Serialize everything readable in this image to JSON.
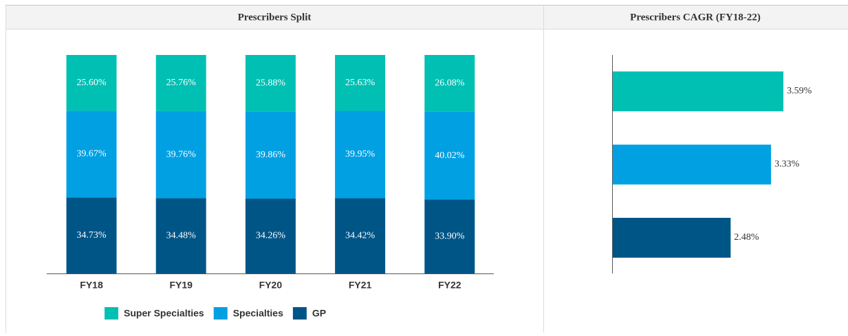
{
  "chart_data": [
    {
      "type": "bar",
      "stacked": true,
      "title": "Prescribers Split",
      "categories": [
        "FY18",
        "FY19",
        "FY20",
        "FY21",
        "FY22"
      ],
      "series": [
        {
          "name": "GP",
          "color": "#005587",
          "values": [
            34.73,
            34.48,
            34.26,
            34.42,
            33.9
          ],
          "value_labels": [
            "34.73%",
            "34.48%",
            "34.26%",
            "34.42%",
            "33.90%"
          ]
        },
        {
          "name": "Specialties",
          "color": "#00a0e3",
          "values": [
            39.67,
            39.76,
            39.86,
            39.95,
            40.02
          ],
          "value_labels": [
            "39.67%",
            "39.76%",
            "39.86%",
            "39.95%",
            "40.02%"
          ]
        },
        {
          "name": "Super Specialties",
          "color": "#00c0b3",
          "values": [
            25.6,
            25.76,
            25.88,
            25.63,
            26.08
          ],
          "value_labels": [
            "25.60%",
            "25.76%",
            "25.88%",
            "25.63%",
            "26.08%"
          ]
        }
      ],
      "legend": "bottom"
    },
    {
      "type": "bar",
      "orientation": "horizontal",
      "title": "Prescribers CAGR (FY18-22)",
      "values": [
        3.59,
        3.33,
        2.48
      ],
      "value_labels": [
        "3.59%",
        "3.33%",
        "2.48%"
      ],
      "colors": [
        "#00c0b3",
        "#00a0e3",
        "#005587"
      ]
    }
  ]
}
